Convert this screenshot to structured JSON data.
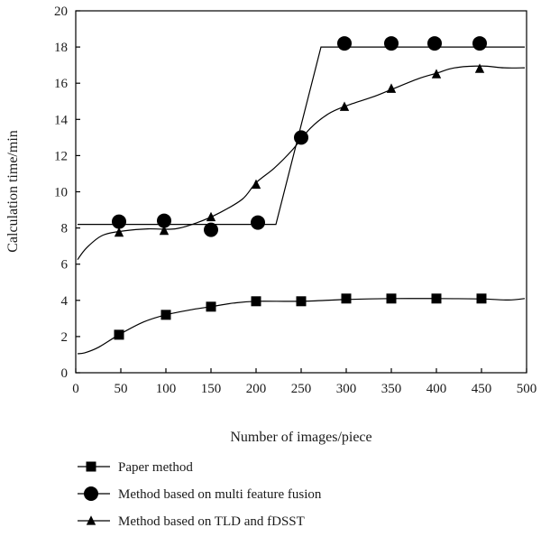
{
  "chart_data": {
    "type": "line",
    "title": "",
    "xlabel": "Number of images/piece",
    "ylabel": "Calculation time/min",
    "xlim": [
      0,
      500
    ],
    "ylim": [
      0,
      20
    ],
    "xticks": [
      0,
      50,
      100,
      150,
      200,
      250,
      300,
      350,
      400,
      450,
      500
    ],
    "yticks": [
      0,
      2,
      4,
      6,
      8,
      10,
      12,
      14,
      16,
      18,
      20
    ],
    "grid": false,
    "legend_position": "bottom-left",
    "series": [
      {
        "name": "Paper method",
        "marker": "square",
        "color": "#000000",
        "points": [
          [
            48,
            2.1
          ],
          [
            100,
            3.2
          ],
          [
            150,
            3.65
          ],
          [
            200,
            3.95
          ],
          [
            250,
            3.95
          ],
          [
            300,
            4.1
          ],
          [
            350,
            4.1
          ],
          [
            400,
            4.1
          ],
          [
            450,
            4.1
          ]
        ],
        "curve": [
          [
            2,
            1.05
          ],
          [
            10,
            1.1
          ],
          [
            25,
            1.4
          ],
          [
            48,
            2.1
          ],
          [
            75,
            2.8
          ],
          [
            100,
            3.2
          ],
          [
            130,
            3.5
          ],
          [
            150,
            3.65
          ],
          [
            175,
            3.85
          ],
          [
            200,
            3.95
          ],
          [
            250,
            3.95
          ],
          [
            300,
            4.05
          ],
          [
            350,
            4.1
          ],
          [
            400,
            4.1
          ],
          [
            450,
            4.08
          ],
          [
            480,
            4.02
          ],
          [
            498,
            4.1
          ]
        ]
      },
      {
        "name": "Method based on multi feature fusion",
        "marker": "circle",
        "color": "#000000",
        "points": [
          [
            48,
            8.35
          ],
          [
            98,
            8.4
          ],
          [
            150,
            7.9
          ],
          [
            202,
            8.3
          ],
          [
            250,
            13.0
          ],
          [
            298,
            18.2
          ],
          [
            350,
            18.2
          ],
          [
            398,
            18.2
          ],
          [
            448,
            18.2
          ]
        ],
        "curve": [
          [
            2,
            8.2
          ],
          [
            222,
            8.2
          ],
          [
            272,
            18.0
          ],
          [
            498,
            18.0
          ]
        ]
      },
      {
        "name": "Method based on TLD and fDSST",
        "marker": "triangle",
        "color": "#000000",
        "points": [
          [
            48,
            7.75
          ],
          [
            98,
            7.85
          ],
          [
            150,
            8.6
          ],
          [
            200,
            10.4
          ],
          [
            250,
            13.0
          ],
          [
            298,
            14.7
          ],
          [
            350,
            15.7
          ],
          [
            400,
            16.5
          ],
          [
            448,
            16.8
          ]
        ],
        "curve": [
          [
            2,
            6.25
          ],
          [
            12,
            6.9
          ],
          [
            30,
            7.6
          ],
          [
            55,
            7.85
          ],
          [
            80,
            7.95
          ],
          [
            110,
            7.95
          ],
          [
            135,
            8.3
          ],
          [
            160,
            8.85
          ],
          [
            185,
            9.6
          ],
          [
            200,
            10.5
          ],
          [
            220,
            11.3
          ],
          [
            240,
            12.3
          ],
          [
            260,
            13.5
          ],
          [
            280,
            14.3
          ],
          [
            300,
            14.75
          ],
          [
            330,
            15.25
          ],
          [
            350,
            15.65
          ],
          [
            380,
            16.25
          ],
          [
            400,
            16.55
          ],
          [
            420,
            16.85
          ],
          [
            450,
            16.95
          ],
          [
            475,
            16.85
          ],
          [
            498,
            16.85
          ]
        ]
      }
    ]
  }
}
